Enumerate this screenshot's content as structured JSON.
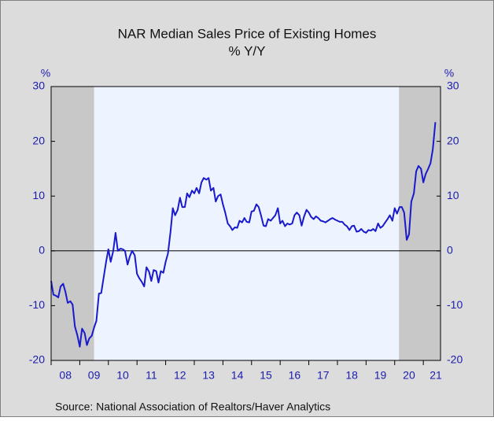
{
  "chart_data": {
    "type": "line",
    "title": "NAR Median Sales Price of Existing Homes",
    "subtitle": "% Y/Y",
    "ylabel": "%",
    "y2label": "%",
    "source": "Source:  National Association of Realtors/Haver Analytics",
    "color": "#1a1acd",
    "shaded_periods": [
      [
        2008,
        2009.5
      ],
      [
        2020.15,
        2021.6
      ]
    ],
    "xlim": [
      2008,
      2021.6
    ],
    "xticks": [
      {
        "value": 2008,
        "label": "08"
      },
      {
        "value": 2009,
        "label": "09"
      },
      {
        "value": 2010,
        "label": "10"
      },
      {
        "value": 2011,
        "label": "11"
      },
      {
        "value": 2012,
        "label": "12"
      },
      {
        "value": 2013,
        "label": "13"
      },
      {
        "value": 2014,
        "label": "14"
      },
      {
        "value": 2015,
        "label": "15"
      },
      {
        "value": 2016,
        "label": "16"
      },
      {
        "value": 2017,
        "label": "17"
      },
      {
        "value": 2018,
        "label": "18"
      },
      {
        "value": 2019,
        "label": "19"
      },
      {
        "value": 2020,
        "label": "20"
      },
      {
        "value": 2021,
        "label": "21"
      }
    ],
    "ylim": [
      -20,
      30
    ],
    "yticks": [
      30,
      20,
      10,
      0,
      -10,
      -20
    ],
    "y2lim": [
      -20,
      30
    ],
    "y2ticks": [
      30,
      20,
      10,
      0,
      -10,
      -20
    ],
    "x": [
      2008,
      2008.08,
      2008.17,
      2008.25,
      2008.33,
      2008.42,
      2008.5,
      2008.58,
      2008.67,
      2008.75,
      2008.83,
      2008.92,
      2009,
      2009.08,
      2009.17,
      2009.25,
      2009.33,
      2009.42,
      2009.5,
      2009.58,
      2009.67,
      2009.75,
      2009.83,
      2009.92,
      2010,
      2010.08,
      2010.17,
      2010.25,
      2010.33,
      2010.42,
      2010.5,
      2010.58,
      2010.67,
      2010.75,
      2010.83,
      2010.92,
      2011,
      2011.08,
      2011.17,
      2011.25,
      2011.33,
      2011.42,
      2011.5,
      2011.58,
      2011.67,
      2011.75,
      2011.83,
      2011.92,
      2012,
      2012.08,
      2012.17,
      2012.25,
      2012.33,
      2012.42,
      2012.5,
      2012.58,
      2012.67,
      2012.75,
      2012.83,
      2012.92,
      2013,
      2013.08,
      2013.17,
      2013.25,
      2013.33,
      2013.42,
      2013.5,
      2013.58,
      2013.67,
      2013.75,
      2013.83,
      2013.92,
      2014,
      2014.08,
      2014.17,
      2014.25,
      2014.33,
      2014.42,
      2014.5,
      2014.58,
      2014.67,
      2014.75,
      2014.83,
      2014.92,
      2015,
      2015.08,
      2015.17,
      2015.25,
      2015.33,
      2015.42,
      2015.5,
      2015.58,
      2015.67,
      2015.75,
      2015.83,
      2015.92,
      2016,
      2016.08,
      2016.17,
      2016.25,
      2016.33,
      2016.42,
      2016.5,
      2016.58,
      2016.67,
      2016.75,
      2016.83,
      2016.92,
      2017,
      2017.08,
      2017.17,
      2017.25,
      2017.33,
      2017.42,
      2017.5,
      2017.58,
      2017.67,
      2017.75,
      2017.83,
      2017.92,
      2018,
      2018.08,
      2018.17,
      2018.25,
      2018.33,
      2018.42,
      2018.5,
      2018.58,
      2018.67,
      2018.75,
      2018.83,
      2018.92,
      2019,
      2019.08,
      2019.17,
      2019.25,
      2019.33,
      2019.42,
      2019.5,
      2019.58,
      2019.67,
      2019.75,
      2019.83,
      2019.92,
      2020,
      2020.08,
      2020.17,
      2020.25,
      2020.33,
      2020.42,
      2020.5,
      2020.58,
      2020.67,
      2020.75,
      2020.83,
      2020.92,
      2021,
      2021.08,
      2021.17,
      2021.25,
      2021.33,
      2021.42
    ],
    "values": [
      -5.5,
      -8,
      -8.2,
      -8.5,
      -6.5,
      -6,
      -7.5,
      -9.5,
      -9.2,
      -9.8,
      -13.8,
      -15.5,
      -17.5,
      -14.2,
      -15,
      -17.2,
      -16,
      -15.5,
      -14,
      -12.8,
      -7.8,
      -7.7,
      -5,
      -2,
      0.3,
      -2,
      0,
      3.3,
      0,
      0.4,
      0.3,
      0,
      -2.5,
      -1,
      0,
      -0.8,
      -4.2,
      -5,
      -5.7,
      -6.5,
      -3,
      -3.8,
      -5.5,
      -3.5,
      -3.7,
      -5.8,
      -3.7,
      -4,
      -2,
      -0.5,
      3.5,
      7.8,
      6.5,
      7.5,
      9.7,
      8,
      8,
      10.5,
      9.8,
      11,
      10.5,
      11.5,
      10.5,
      12.5,
      13.3,
      13,
      13.3,
      11,
      11.5,
      9,
      10,
      10.3,
      8.5,
      7,
      5,
      4.5,
      3.8,
      4.3,
      4.2,
      5.5,
      5.2,
      6,
      5.3,
      5.2,
      7.2,
      7.3,
      8.5,
      8,
      6.5,
      4.6,
      4.5,
      5.8,
      5.5,
      6,
      6.5,
      7.8,
      5,
      5.5,
      4.5,
      5,
      4.8,
      5,
      6.5,
      7,
      6.5,
      4.6,
      6.2,
      7.5,
      7,
      6.2,
      5.8,
      6.3,
      6,
      5.5,
      5.4,
      5.2,
      5.5,
      5.8,
      6,
      5.7,
      5.5,
      5.3,
      5.3,
      4.8,
      4.5,
      3.8,
      4.5,
      4.6,
      3.5,
      3.6,
      4,
      3.5,
      3.3,
      3.8,
      3.7,
      4,
      3.6,
      5,
      4.2,
      4.5,
      5.2,
      5.8,
      6.5,
      5.5,
      7.8,
      6.8,
      8,
      8,
      7,
      2,
      3,
      9,
      10.5,
      14.5,
      15.5,
      15,
      12.5,
      14,
      15,
      16,
      18.5,
      23.5
    ]
  }
}
